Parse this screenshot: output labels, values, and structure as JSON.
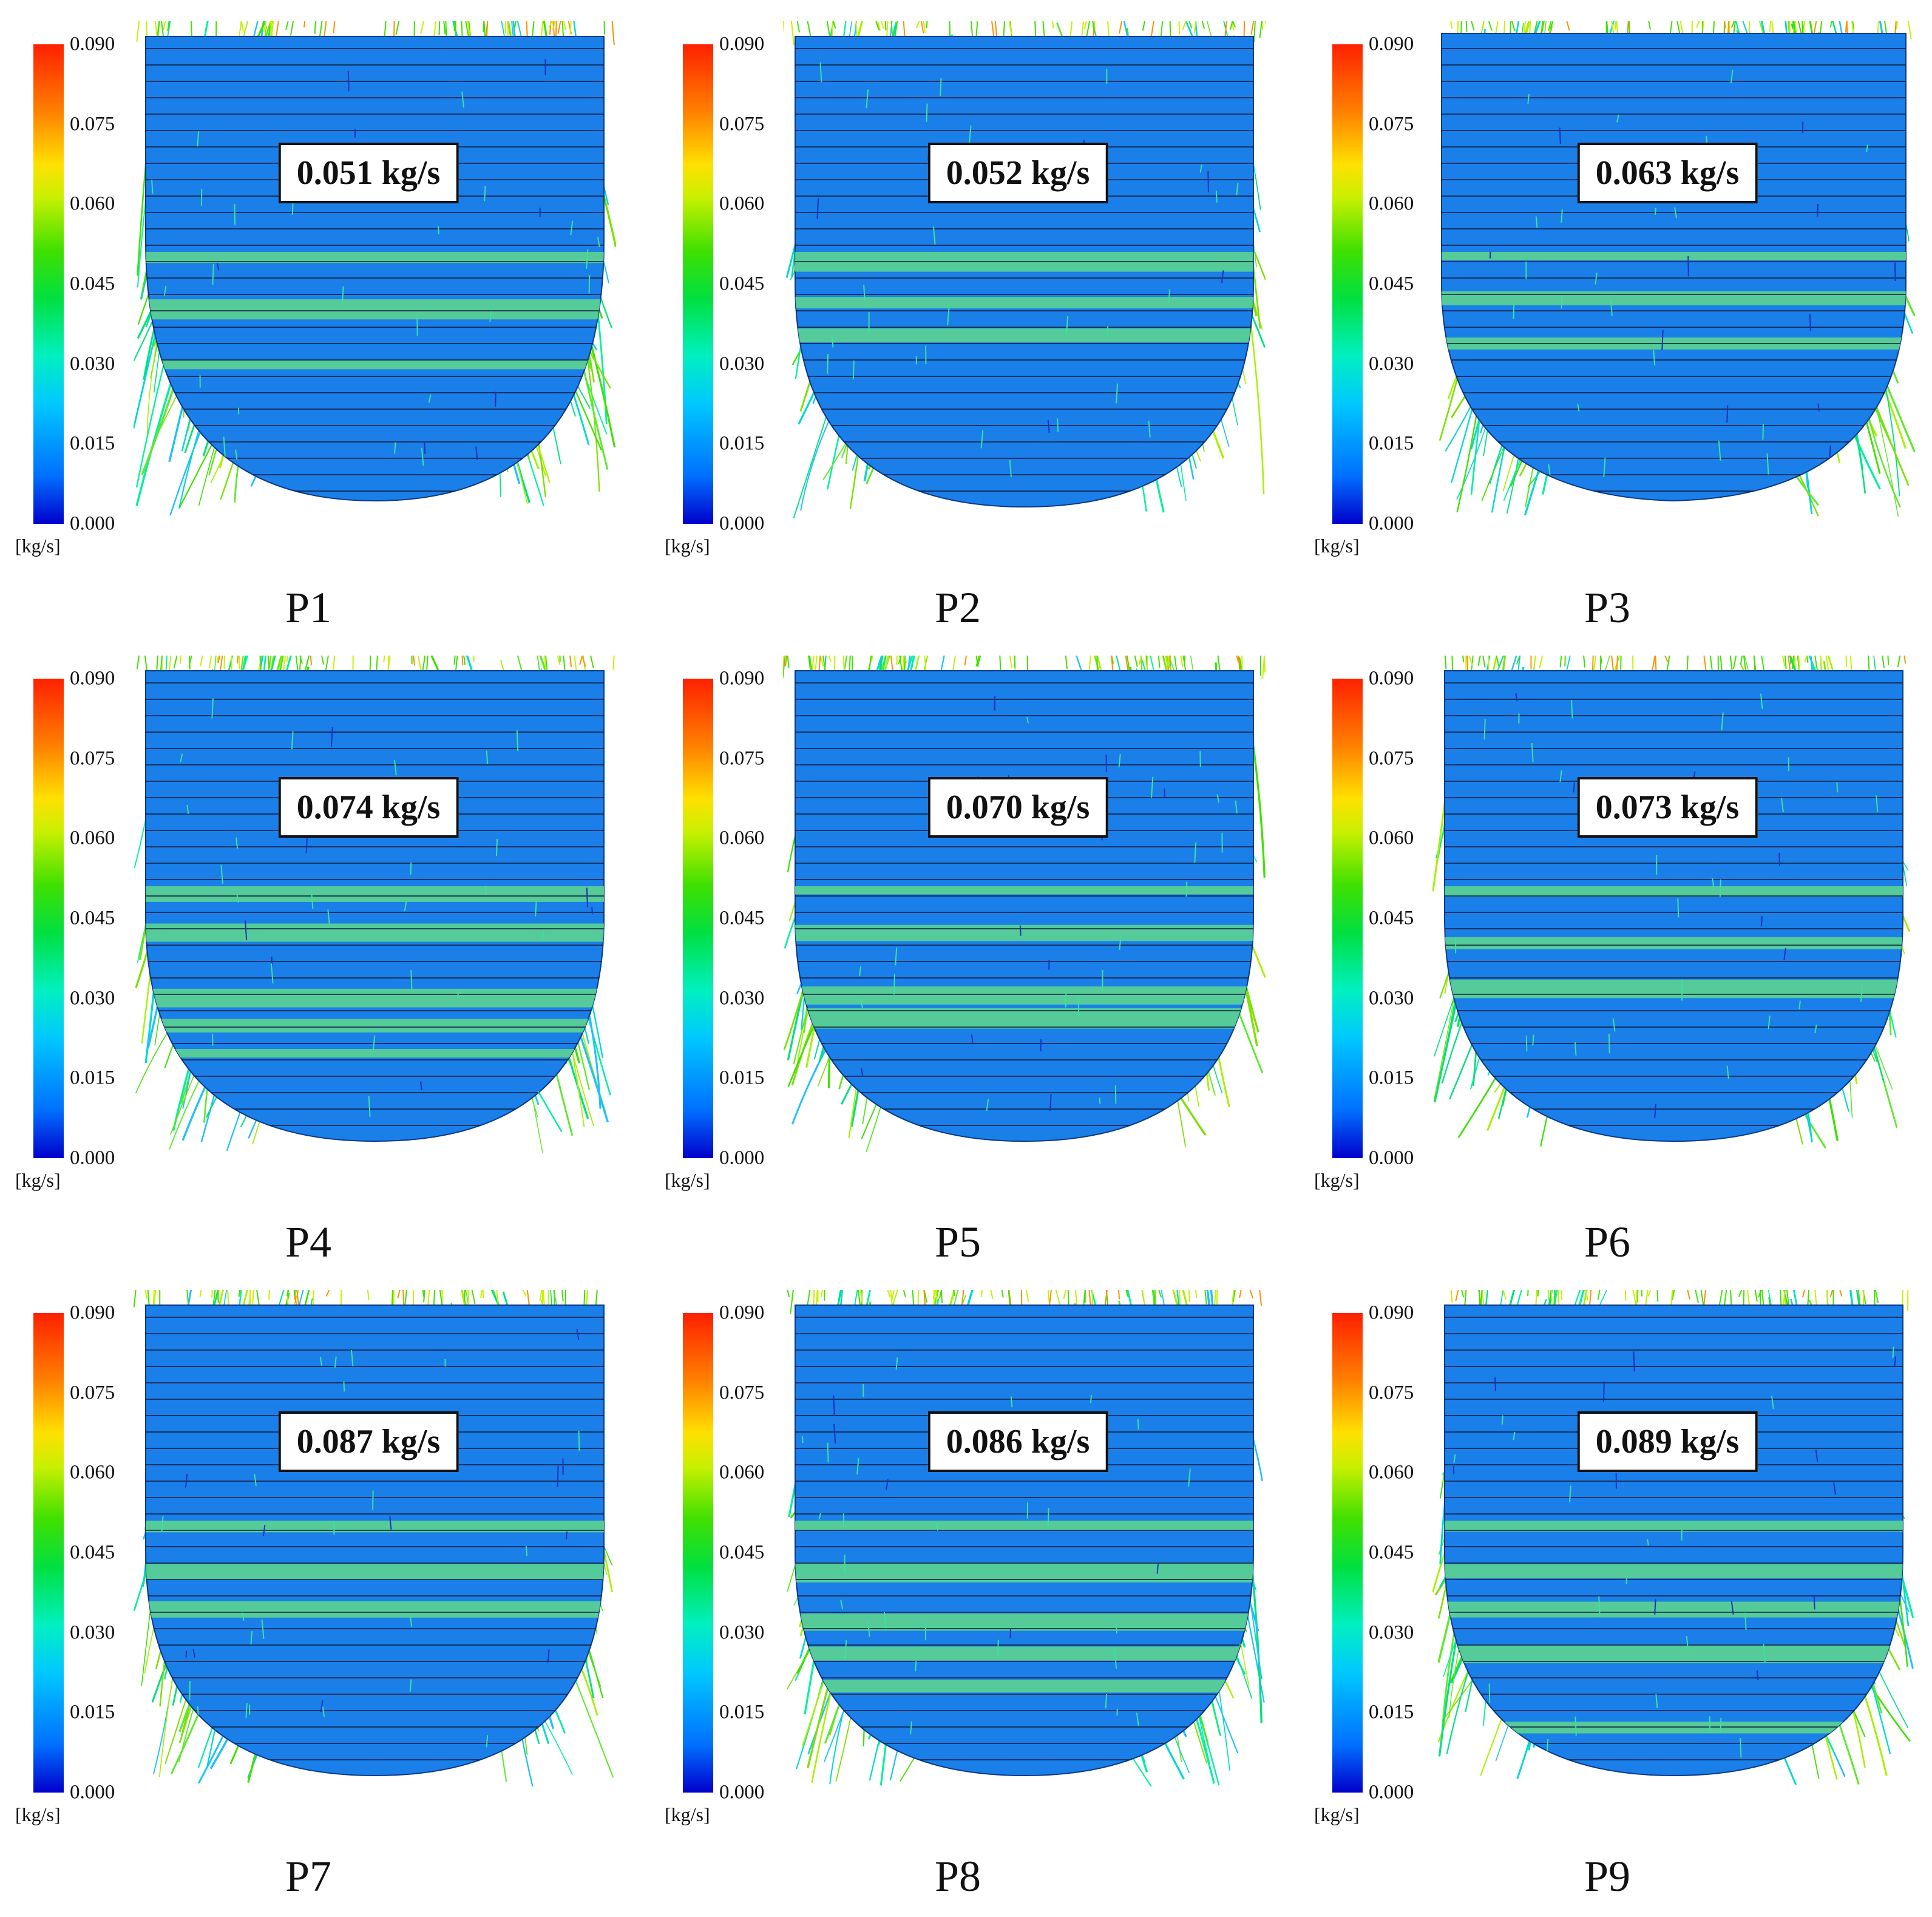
{
  "colorbar": {
    "ticks": [
      "0.090",
      "0.075",
      "0.060",
      "0.045",
      "0.030",
      "0.015",
      "0.000"
    ],
    "unit": "[kg/s]",
    "range": [
      0.0,
      0.09
    ]
  },
  "panels": [
    {
      "label": "P1",
      "flow_rate": "0.051 kg/s",
      "variant": "top"
    },
    {
      "label": "P2",
      "flow_rate": "0.052 kg/s",
      "variant": "mid"
    },
    {
      "label": "P3",
      "flow_rate": "0.063 kg/s",
      "variant": "flat"
    },
    {
      "label": "P4",
      "flow_rate": "0.074 kg/s",
      "variant": "mid"
    },
    {
      "label": "P5",
      "flow_rate": "0.070 kg/s",
      "variant": "mid"
    },
    {
      "label": "P6",
      "flow_rate": "0.073 kg/s",
      "variant": "mid"
    },
    {
      "label": "P7",
      "flow_rate": "0.087 kg/s",
      "variant": "mid"
    },
    {
      "label": "P8",
      "flow_rate": "0.086 kg/s",
      "variant": "mid"
    },
    {
      "label": "P9",
      "flow_rate": "0.089 kg/s",
      "variant": "mid"
    }
  ]
}
